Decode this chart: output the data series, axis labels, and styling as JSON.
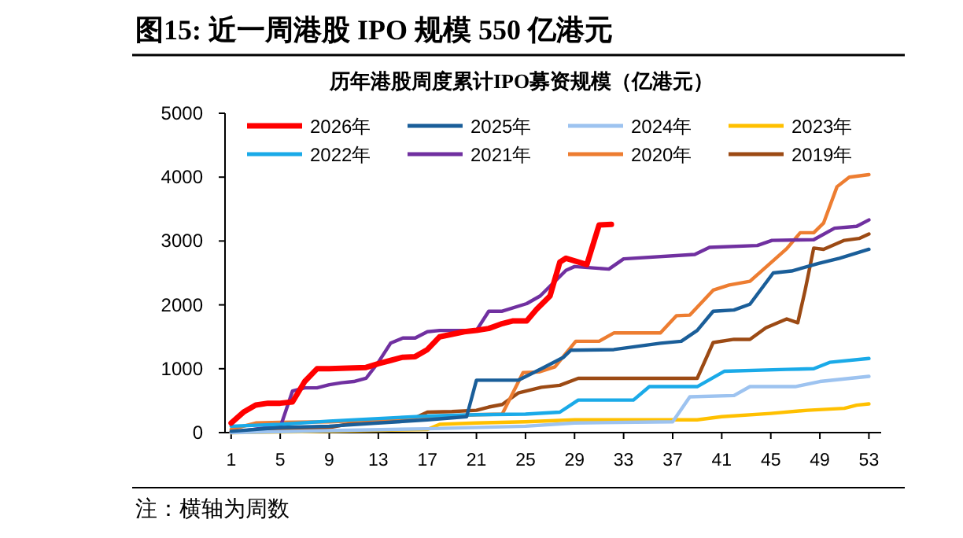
{
  "chart_data": {
    "type": "line",
    "title": "图15:  近一周港股 IPO 规模 550 亿港元",
    "subtitle": "历年港股周度累计IPO募资规模（亿港元）",
    "annotations": [
      "注：横轴为周数"
    ],
    "xlim": [
      0.5,
      54
    ],
    "xticks": [
      1,
      5,
      9,
      13,
      17,
      21,
      25,
      29,
      33,
      37,
      41,
      45,
      49,
      53
    ],
    "ylim": [
      0,
      5000
    ],
    "yticks": [
      0,
      1000,
      2000,
      3000,
      4000,
      5000
    ],
    "legend": "top",
    "series": [
      {
        "name": "2026年",
        "color": "#ff0000",
        "x": [
          1,
          2,
          3,
          4,
          5,
          6,
          7,
          8,
          9,
          12,
          13,
          14,
          15,
          16,
          17,
          18,
          19,
          20,
          21,
          22,
          23,
          24,
          25.1,
          25.9,
          27,
          27.8,
          28.3,
          30,
          31,
          32
        ],
        "values": [
          150,
          320,
          430,
          460,
          460,
          480,
          800,
          1000,
          1000,
          1020,
          1080,
          1130,
          1180,
          1190,
          1300,
          1500,
          1540,
          1580,
          1600,
          1630,
          1700,
          1750,
          1750,
          1930,
          2140,
          2670,
          2730,
          2630,
          3250,
          3260
        ]
      },
      {
        "name": "2025年",
        "color": "#1a5e99",
        "x": [
          1,
          5,
          9,
          13,
          17,
          20.2,
          21,
          24.4,
          26.3,
          28.1,
          28.7,
          32.2,
          36,
          37.7,
          39,
          40.3,
          42,
          43.3,
          45.2,
          46.7,
          48.9,
          50.6,
          53
        ],
        "values": [
          20,
          80,
          100,
          150,
          200,
          250,
          820,
          820,
          1000,
          1180,
          1290,
          1300,
          1400,
          1430,
          1600,
          1900,
          1920,
          2010,
          2500,
          2530,
          2650,
          2730,
          2870
        ]
      },
      {
        "name": "2024年",
        "color": "#9dc3f0",
        "x": [
          1,
          9,
          17,
          25,
          29,
          37,
          38.4,
          42,
          43.3,
          47,
          49,
          53
        ],
        "values": [
          0,
          30,
          60,
          100,
          150,
          170,
          560,
          580,
          720,
          720,
          800,
          880
        ]
      },
      {
        "name": "2023年",
        "color": "#ffc000",
        "x": [
          1,
          9,
          17,
          18,
          21,
          25,
          29,
          39,
          41,
          45,
          48,
          51,
          52,
          53
        ],
        "values": [
          0,
          20,
          50,
          130,
          150,
          170,
          200,
          200,
          250,
          300,
          350,
          380,
          430,
          450
        ]
      },
      {
        "name": "2022年",
        "color": "#1aaae8",
        "x": [
          1,
          5,
          9,
          13,
          17,
          21,
          25,
          27.8,
          29.3,
          33.8,
          35.1,
          39,
          41.2,
          46.3,
          48.5,
          49.8,
          53
        ],
        "values": [
          100,
          130,
          180,
          220,
          260,
          280,
          290,
          320,
          510,
          510,
          720,
          720,
          960,
          990,
          1000,
          1100,
          1160
        ]
      },
      {
        "name": "2021年",
        "color": "#7030a0",
        "x": [
          1,
          4,
          5,
          6,
          7,
          8,
          9,
          10,
          11,
          12,
          13,
          14,
          15,
          16,
          17,
          18,
          21,
          22,
          23.1,
          25.1,
          26.2,
          28.3,
          29,
          31.8,
          33,
          38.8,
          40,
          43.9,
          45.1,
          48.5,
          50.2,
          52,
          53
        ],
        "values": [
          0,
          80,
          80,
          650,
          700,
          700,
          750,
          780,
          800,
          850,
          1100,
          1400,
          1480,
          1480,
          1580,
          1600,
          1600,
          1900,
          1900,
          2020,
          2140,
          2540,
          2600,
          2560,
          2720,
          2790,
          2900,
          2930,
          3010,
          3020,
          3200,
          3230,
          3330
        ]
      },
      {
        "name": "2020年",
        "color": "#ed7d31",
        "x": [
          1,
          3,
          5,
          9,
          13,
          17,
          21,
          23.1,
          24.8,
          26.1,
          27.4,
          29.1,
          31,
          32.2,
          36,
          37.3,
          38.4,
          40.3,
          41.6,
          43.3,
          46.3,
          47.4,
          48.5,
          49.3,
          50.4,
          51.4,
          53
        ],
        "values": [
          50,
          150,
          160,
          170,
          200,
          250,
          280,
          290,
          940,
          950,
          1030,
          1430,
          1430,
          1560,
          1560,
          1830,
          1840,
          2230,
          2310,
          2370,
          2880,
          3130,
          3130,
          3280,
          3850,
          4000,
          4040
        ]
      },
      {
        "name": "2019年",
        "color": "#9c4a14",
        "x": [
          1,
          5,
          9,
          11,
          13,
          16,
          17,
          19,
          21,
          22,
          23.1,
          24.4,
          26.3,
          27.8,
          29.3,
          39,
          40.3,
          42,
          43.3,
          44.6,
          46.3,
          47.2,
          47.8,
          48.5,
          49.3,
          51,
          52.2,
          53
        ],
        "values": [
          20,
          40,
          80,
          150,
          200,
          230,
          320,
          330,
          350,
          400,
          440,
          620,
          710,
          740,
          850,
          850,
          1410,
          1460,
          1460,
          1640,
          1780,
          1720,
          2230,
          2890,
          2870,
          3010,
          3040,
          3110
        ]
      }
    ]
  }
}
